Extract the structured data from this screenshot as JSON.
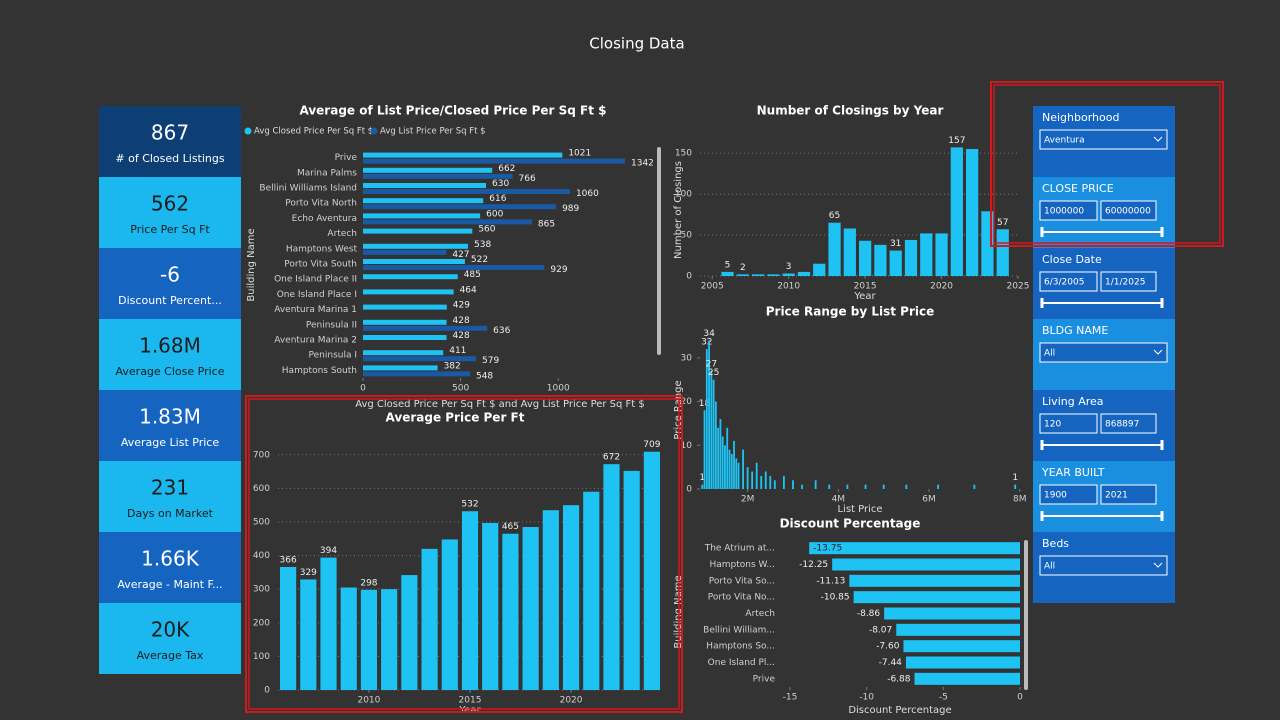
{
  "title": "Closing Data",
  "kpis": [
    {
      "value": "867",
      "label": "# of Closed Listings"
    },
    {
      "value": "562",
      "label": "Price Per Sq Ft"
    },
    {
      "value": "-6",
      "label": "Discount Percent..."
    },
    {
      "value": "1.68M",
      "label": "Average Close Price"
    },
    {
      "value": "1.83M",
      "label": "Average List Price"
    },
    {
      "value": "231",
      "label": "Days on Market"
    },
    {
      "value": "1.66K",
      "label": "Average - Maint F..."
    },
    {
      "value": "20K",
      "label": "Average Tax"
    }
  ],
  "slicers": [
    {
      "title": "Neighborhood",
      "selected": "Aventura"
    },
    {
      "title": "CLOSE PRICE",
      "min": 1000000,
      "max": 60000000
    },
    {
      "title": "Close Date",
      "min": "6/3/2005",
      "max": "1/1/2025"
    },
    {
      "title": "BLDG NAME",
      "selected": "All"
    },
    {
      "title": "Living Area",
      "min": 120,
      "max": 868897
    },
    {
      "title": "YEAR BUILT",
      "min": 1900,
      "max": 2021
    },
    {
      "title": "Beds",
      "selected": "All"
    }
  ],
  "chart_data": [
    {
      "type": "bar",
      "orientation": "horizontal",
      "title": "Average of List Price/Closed Price Per Sq Ft $",
      "x_label": "Avg Closed Price Per Sq Ft $ and Avg List Price Per Sq Ft $",
      "y_label": "Building Name",
      "categories": [
        "Prive",
        "Marina Palms",
        "Bellini Williams Island",
        "Porto Vita North",
        "Echo Aventura",
        "Artech",
        "Hamptons West",
        "Porto Vita South",
        "One Island Place II",
        "One Island Place I",
        "Aventura Marina 1",
        "Peninsula II",
        "Aventura Marina 2",
        "Peninsula I",
        "Hamptons South"
      ],
      "series": [
        {
          "name": "Avg Closed Price Per Sq Ft $",
          "color": "#1ec3f3",
          "values": [
            1021,
            662,
            630,
            616,
            600,
            560,
            538,
            522,
            485,
            464,
            429,
            428,
            428,
            411,
            382
          ]
        },
        {
          "name": "Avg List Price Per Sq Ft $",
          "color": "#1a5aa5",
          "values": [
            1342,
            766,
            1060,
            989,
            865,
            null,
            427,
            929,
            null,
            null,
            null,
            636,
            null,
            579,
            548
          ]
        }
      ],
      "xlim": [
        0,
        1470
      ],
      "xticks": [
        0,
        500,
        1000
      ],
      "grid": false,
      "legend": "top-left"
    },
    {
      "type": "bar",
      "title": "Number of Closings by Year",
      "x_label": "Year",
      "y_label": "Number of Closings",
      "x": [
        2006,
        2007,
        2008,
        2009,
        2010,
        2011,
        2012,
        2013,
        2014,
        2015,
        2016,
        2017,
        2018,
        2019,
        2020,
        2021,
        2022,
        2023,
        2024
      ],
      "values": [
        5,
        2,
        2,
        2,
        3,
        5,
        15,
        65,
        58,
        43,
        38,
        31,
        44,
        52,
        52,
        157,
        155,
        79,
        57
      ],
      "value_labels": [
        "5",
        "2",
        null,
        null,
        "3",
        null,
        null,
        "65",
        null,
        null,
        null,
        "31",
        null,
        null,
        null,
        "157",
        null,
        null,
        "57"
      ],
      "color": "#1ec3f3",
      "xlim": [
        2004.2,
        2025
      ],
      "xticks": [
        2005,
        2010,
        2015,
        2020,
        2025
      ],
      "ylim": [
        0,
        166
      ],
      "yticks": [
        0,
        50,
        100,
        150
      ],
      "grid": true
    },
    {
      "type": "bar",
      "title": "Price Range by List Price",
      "x_label": "List Price",
      "y_label": "Price Range",
      "x": [
        1000000,
        1050000,
        1100000,
        1150000,
        1200000,
        1250000,
        1300000,
        1350000,
        1400000,
        1450000,
        1500000,
        1550000,
        1600000,
        1650000,
        1700000,
        1750000,
        1800000,
        1900000,
        2000000,
        2100000,
        2200000,
        2300000,
        2400000,
        2500000,
        2600000,
        2800000,
        3000000,
        3200000,
        3500000,
        3800000,
        4200000,
        4600000,
        5000000,
        5500000,
        6200000,
        7000000,
        7900000
      ],
      "values": [
        1,
        18,
        32,
        34,
        27,
        25,
        20,
        14,
        16,
        12,
        10,
        14,
        9,
        8,
        11,
        7,
        6,
        9,
        5,
        4,
        6,
        3,
        4,
        3,
        2,
        3,
        2,
        1,
        2,
        1,
        1,
        1,
        1,
        1,
        1,
        1,
        1
      ],
      "value_labels": [
        "1",
        "18",
        "32",
        "34",
        "27",
        "25",
        null,
        null,
        null,
        null,
        null,
        null,
        null,
        null,
        null,
        null,
        null,
        null,
        null,
        null,
        null,
        null,
        null,
        null,
        null,
        null,
        null,
        null,
        null,
        null,
        null,
        null,
        null,
        null,
        null,
        null,
        "1"
      ],
      "color": "#1ec3f3",
      "xlim": [
        950000,
        8050000
      ],
      "xticks": [
        {
          "value": 2000000,
          "label": "2M"
        },
        {
          "value": 4000000,
          "label": "4M"
        },
        {
          "value": 6000000,
          "label": "6M"
        },
        {
          "value": 8000000,
          "label": "8M"
        }
      ],
      "ylim": [
        0,
        35
      ],
      "yticks": [
        0,
        10,
        20,
        30
      ],
      "grid": false
    },
    {
      "type": "bar",
      "orientation": "horizontal",
      "title": "Discount Percentage",
      "x_label": "Discount Percentage",
      "y_label": "Building Name",
      "categories": [
        "The Atrium at...",
        "Hamptons W...",
        "Porto Vita So...",
        "Porto Vita No...",
        "Artech",
        "Bellini William...",
        "Hamptons So...",
        "One Island Pl...",
        "Prive"
      ],
      "values": [
        -13.75,
        -12.25,
        -11.13,
        -10.85,
        -8.86,
        -8.07,
        -7.6,
        -7.44,
        -6.88
      ],
      "value_labels": [
        "-13.75",
        "-12.25",
        "-11.13",
        "-10.85",
        "-8.86",
        "-8.07",
        "-7.60",
        "-7.44",
        "-6.88"
      ],
      "color": "#1ec3f3",
      "xlim": [
        -15,
        0
      ],
      "xticks": [
        -15,
        -10,
        -5,
        0
      ],
      "grid": false
    },
    {
      "type": "bar",
      "title": "Average Price Per Ft",
      "x_label": "Year",
      "x": [
        2006,
        2007,
        2008,
        2009,
        2010,
        2011,
        2012,
        2013,
        2014,
        2015,
        2016,
        2017,
        2018,
        2019,
        2020,
        2021,
        2022,
        2023,
        2024
      ],
      "values": [
        366,
        329,
        394,
        305,
        298,
        300,
        342,
        420,
        448,
        532,
        497,
        465,
        485,
        535,
        550,
        590,
        672,
        652,
        709
      ],
      "value_labels": [
        "366",
        "329",
        "394",
        null,
        "298",
        null,
        null,
        null,
        null,
        "532",
        null,
        "465",
        null,
        null,
        null,
        null,
        "672",
        null,
        "709"
      ],
      "color": "#1ec3f3",
      "xlim": [
        2005.5,
        2024.5
      ],
      "xticks": [
        2010,
        2015,
        2020
      ],
      "ylim": [
        0,
        735
      ],
      "yticks": [
        0,
        100,
        200,
        300,
        400,
        500,
        600,
        700
      ],
      "grid": true
    }
  ]
}
